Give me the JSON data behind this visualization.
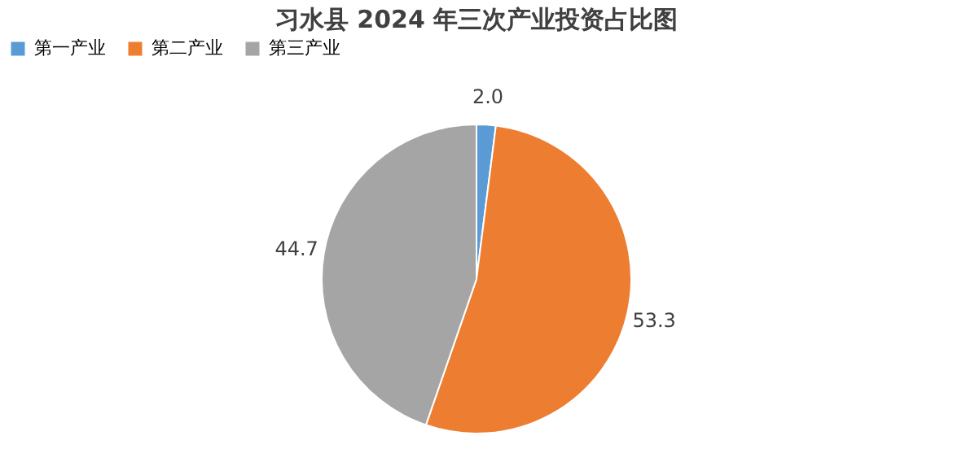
{
  "chart_data": {
    "type": "pie",
    "title": "习水县 2024 年三次产业投资占比图",
    "categories": [
      "第一产业",
      "第二产业",
      "第三产业"
    ],
    "values": [
      2.0,
      53.3,
      44.7
    ],
    "value_labels": [
      "2.0",
      "53.3",
      "44.7"
    ],
    "colors": [
      "#5b9bd5",
      "#ed7d31",
      "#a5a5a5"
    ],
    "legend": "top"
  }
}
